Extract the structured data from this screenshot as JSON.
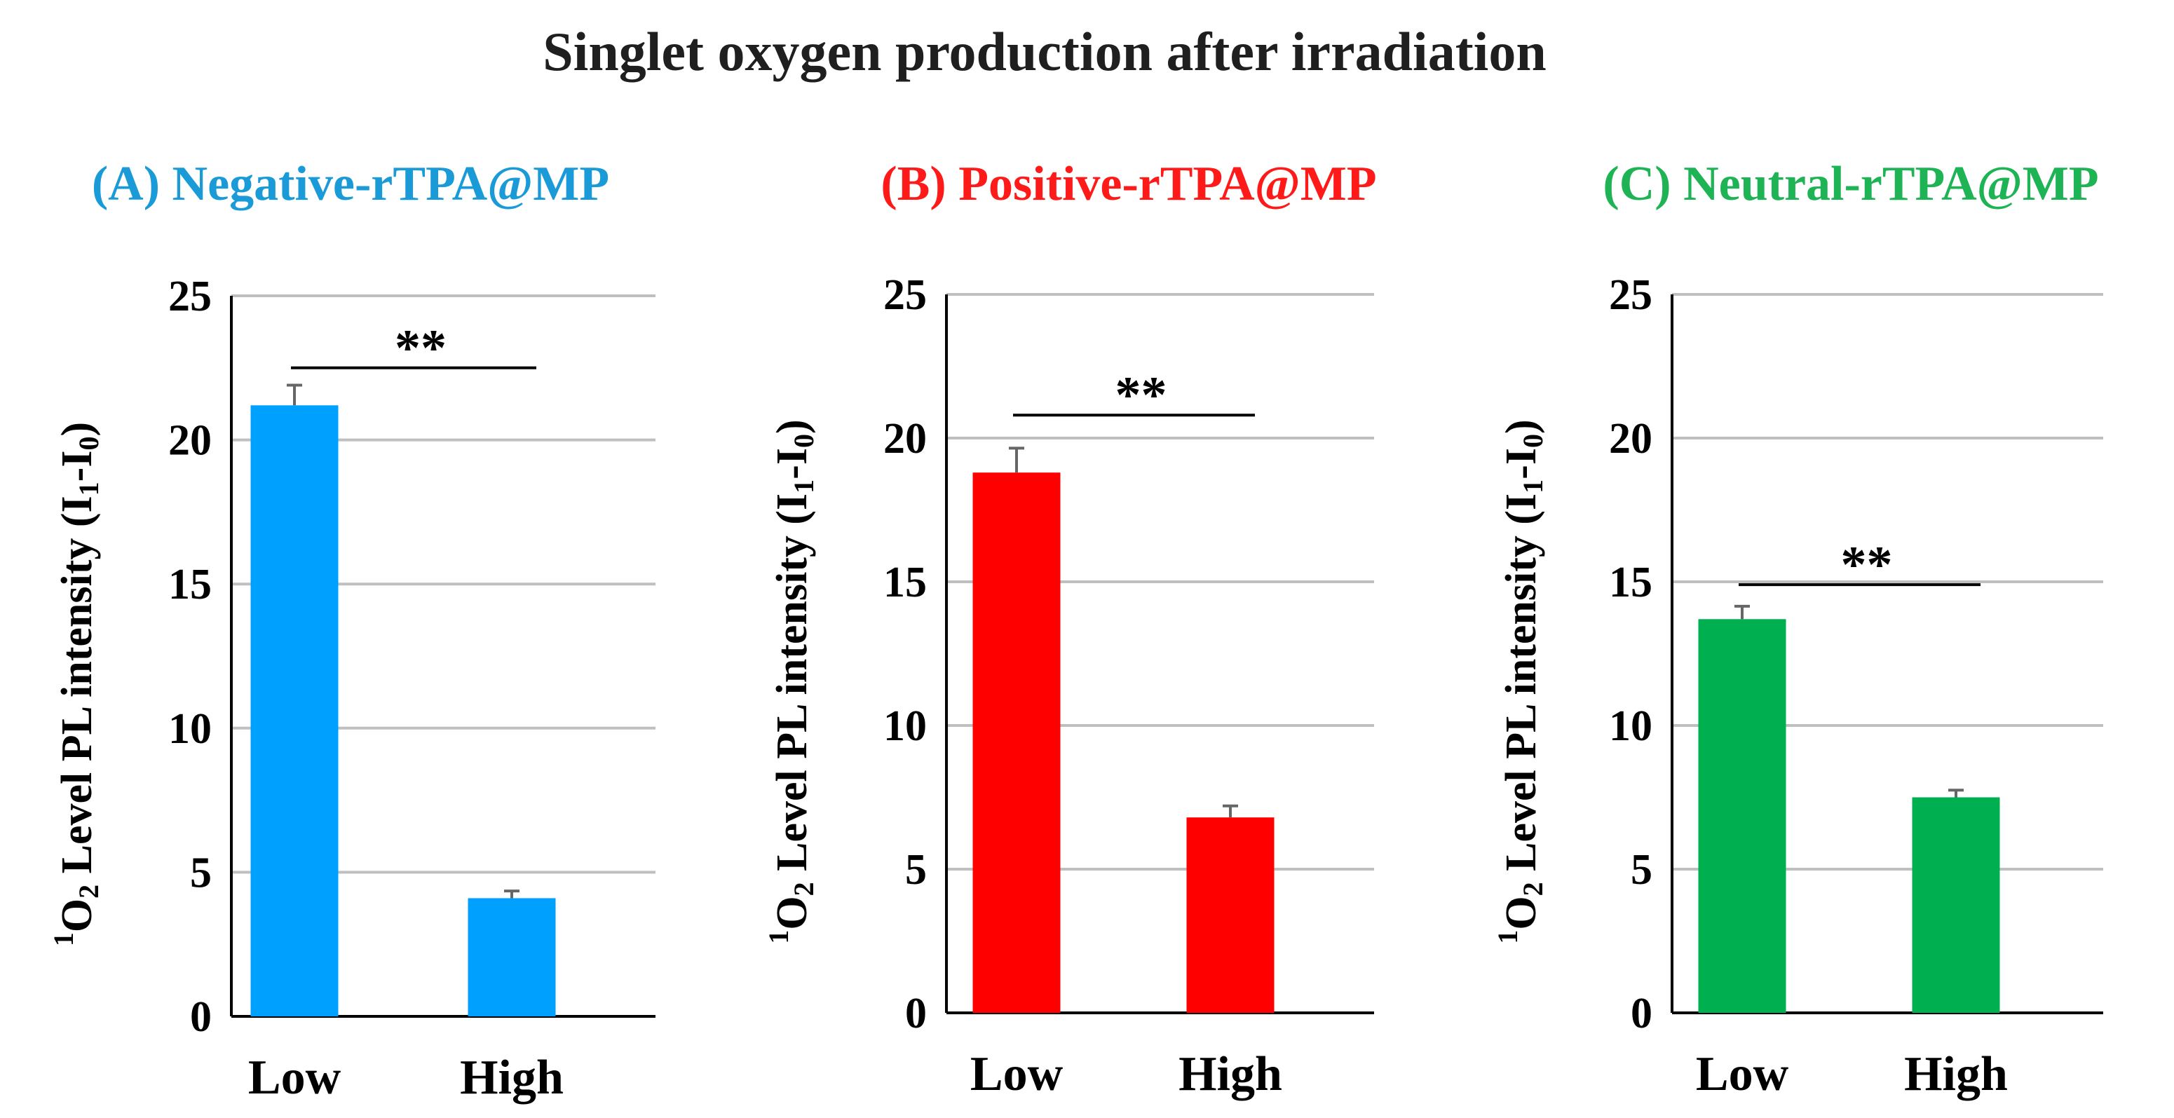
{
  "figure_title": "Singlet oxygen production after irradiation",
  "chart_data": [
    {
      "type": "bar",
      "title": "(A) Negative-rTPA@MP",
      "title_color": "#1a9ad6",
      "bar_color": "#00a0ff",
      "categories": [
        "Low",
        "High"
      ],
      "values": [
        21.2,
        4.1
      ],
      "errors": [
        0.7,
        0.25
      ],
      "ylabel": {
        "sup": "1",
        "main": "O",
        "sub": "2",
        "rest": " Level PL intensity (I",
        "sub2": "1",
        "dash": "-I",
        "sub3": "0",
        "close": ")"
      },
      "ylim": [
        0,
        25
      ],
      "yticks": [
        "0",
        "5",
        "10",
        "15",
        "20",
        "25"
      ],
      "grid": true,
      "significance": {
        "label": "**",
        "level": 22.5
      }
    },
    {
      "type": "bar",
      "title": "(B) Positive-rTPA@MP",
      "title_color": "#ff1a1a",
      "bar_color": "#ff0000",
      "categories": [
        "Low",
        "High"
      ],
      "values": [
        18.8,
        6.8
      ],
      "errors": [
        0.85,
        0.4
      ],
      "ylabel": {
        "sup": "1",
        "main": "O",
        "sub": "2",
        "rest": " Level PL intensity (I",
        "sub2": "1",
        "dash": "-I",
        "sub3": "0",
        "close": ")"
      },
      "ylim": [
        0,
        25
      ],
      "yticks": [
        "0",
        "5",
        "10",
        "15",
        "20",
        "25"
      ],
      "grid": true,
      "significance": {
        "label": "**",
        "level": 20.8
      }
    },
    {
      "type": "bar",
      "title": "(C) Neutral-rTPA@MP",
      "title_color": "#1eb354",
      "bar_color": "#00b050",
      "categories": [
        "Low",
        "High"
      ],
      "values": [
        13.7,
        7.5
      ],
      "errors": [
        0.45,
        0.25
      ],
      "ylabel": {
        "sup": "1",
        "main": "O",
        "sub": "2",
        "rest": " Level PL intensity (I",
        "sub2": "1",
        "dash": "-I",
        "sub3": "0",
        "close": ")"
      },
      "ylim": [
        0,
        25
      ],
      "yticks": [
        "0",
        "5",
        "10",
        "15",
        "20",
        "25"
      ],
      "grid": true,
      "significance": {
        "label": "**",
        "level": 14.9
      }
    }
  ]
}
